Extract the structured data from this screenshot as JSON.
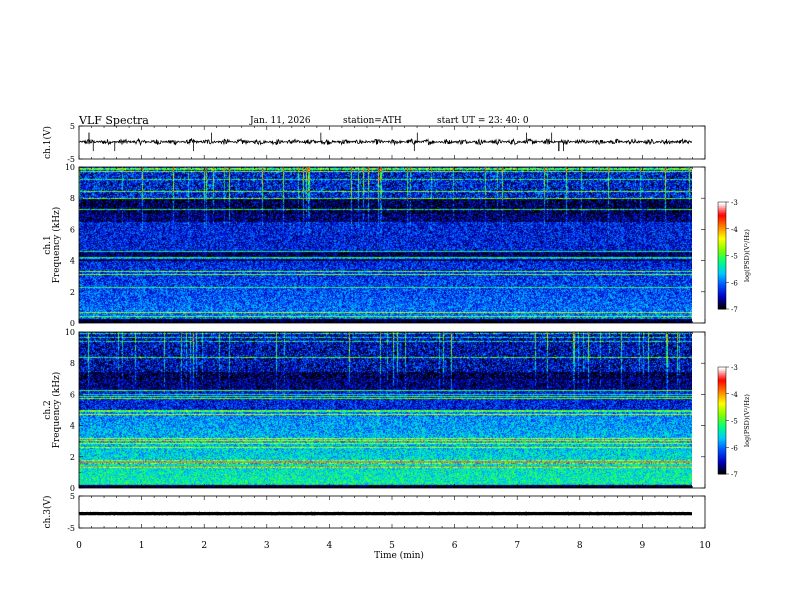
{
  "header": {
    "title": "VLF  Spectra",
    "date": "Jan. 11, 2026",
    "station": "station=ATH",
    "start_ut": "start  UT  =   23: 40: 0"
  },
  "chart_data": [
    {
      "type": "line",
      "panel": "ch1-waveform",
      "ylabel": "ch.1(V)",
      "ylim": [
        -5,
        5
      ],
      "yticks": [
        "5",
        "-5"
      ],
      "xlim": [
        0,
        10
      ],
      "data_end_min": 9.8,
      "series": [
        {
          "name": "ch.1",
          "level": 0.2,
          "noise_amplitude": 0.9
        }
      ]
    },
    {
      "type": "heatmap",
      "panel": "ch1-spectrogram",
      "ylabel": "ch.1\nFrequency (kHz)",
      "ylim": [
        0,
        10
      ],
      "yticks": [
        "0",
        "2",
        "4",
        "6",
        "8",
        "10"
      ],
      "xlim": [
        0,
        10
      ],
      "data_end_min": 9.8,
      "colorbar": {
        "label": "log(PSD)(V²/Hz)",
        "range": [
          -7,
          -3
        ],
        "ticks": [
          "-3",
          "-4",
          "-5",
          "-6",
          "-7"
        ]
      }
    },
    {
      "type": "heatmap",
      "panel": "ch2-spectrogram",
      "ylabel": "ch.2\nFrequency (kHz)",
      "ylim": [
        0,
        10
      ],
      "yticks": [
        "0",
        "2",
        "4",
        "6",
        "8",
        "10"
      ],
      "xlim": [
        0,
        10
      ],
      "data_end_min": 9.8,
      "colorbar": {
        "label": "log(PSD)(V²/Hz)",
        "range": [
          -7,
          -3
        ],
        "ticks": [
          "-3",
          "-4",
          "-5",
          "-6",
          "-7"
        ]
      }
    },
    {
      "type": "line",
      "panel": "ch3-waveform",
      "ylabel": "ch.3(V)",
      "ylim": [
        -5,
        5
      ],
      "yticks": [
        "5",
        "-5"
      ],
      "xlim": [
        0,
        10
      ],
      "data_end_min": 9.8,
      "series": [
        {
          "name": "ch.3",
          "level": -0.5,
          "noise_amplitude": 0.05
        }
      ]
    }
  ],
  "xaxis": {
    "label": "Time  (min)",
    "ticks": [
      "0",
      "1",
      "2",
      "3",
      "4",
      "5",
      "6",
      "7",
      "8",
      "9",
      "10"
    ]
  },
  "colors": {
    "colormap": [
      "#000000",
      "#0000c0",
      "#0050ff",
      "#00c8ff",
      "#00ff80",
      "#80ff00",
      "#ffff00",
      "#ff8000",
      "#ff0000",
      "#ffffff"
    ]
  }
}
